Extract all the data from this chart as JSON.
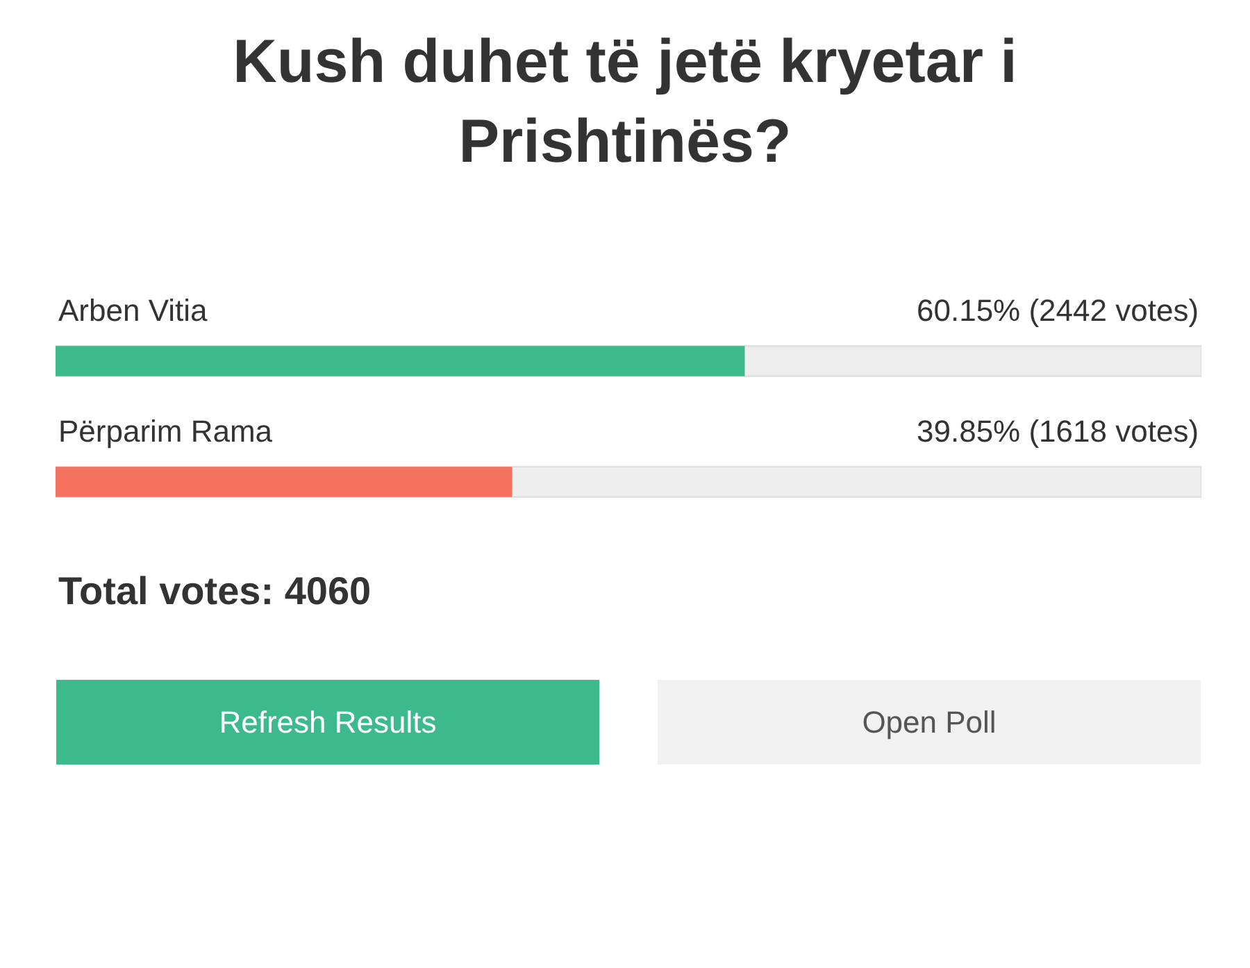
{
  "chart_data": {
    "type": "bar",
    "orientation": "horizontal",
    "title": "Kush duhet të jetë kryetar i\nPrishtinës?",
    "categories": [
      "Arben Vitia",
      "Përparim Rama"
    ],
    "values": [
      60.15,
      39.85
    ],
    "colors": [
      "#3dba8c",
      "#f47160"
    ],
    "value_labels": [
      "60.15% (2442 votes)",
      "39.85% (1618 votes)"
    ],
    "xlim": [
      0,
      100
    ],
    "tick_labels": false,
    "legend": false,
    "annotations": [
      "Total votes: 4060",
      "Refresh Results",
      "Open Poll"
    ]
  }
}
